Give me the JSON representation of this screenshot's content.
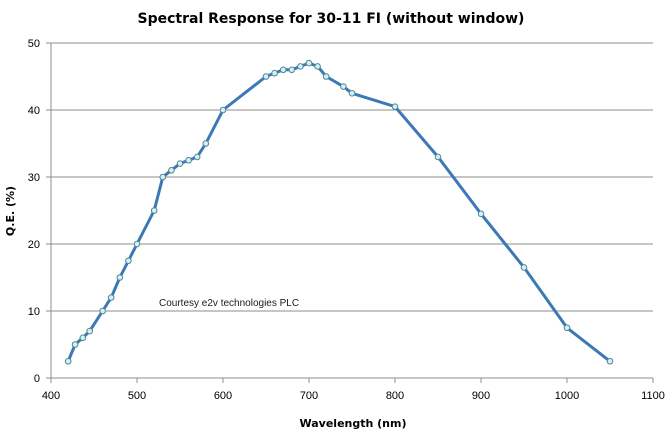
{
  "chart_data": {
    "type": "line",
    "title": "Spectral Response for 30-11 FI (without  window)",
    "xlabel": "Wavelength (nm)",
    "ylabel": "Q.E. (%)",
    "xlim": [
      400,
      1100
    ],
    "ylim": [
      0,
      50
    ],
    "xticks": [
      400,
      500,
      600,
      700,
      800,
      900,
      1000,
      1100
    ],
    "yticks": [
      0,
      10,
      20,
      30,
      40,
      50
    ],
    "grid": "horizontal",
    "legend": "none",
    "annotation": "Courtesy e2v technologies PLC",
    "colors": {
      "line": "#3d78b6",
      "marker_fill": "#d9eef4",
      "marker_stroke": "#4a8a95",
      "grid": "#8c8c8c"
    },
    "series": [
      {
        "x": [
          420,
          428,
          437,
          445,
          460,
          470,
          480,
          490,
          500,
          520,
          530,
          540,
          550,
          560,
          570,
          580,
          600,
          650,
          660,
          670,
          680,
          690,
          700,
          710,
          720,
          740,
          750,
          800,
          850,
          900,
          950,
          1000,
          1050
        ],
        "y": [
          2.5,
          5,
          6,
          7,
          10,
          12,
          15,
          17.5,
          20,
          25,
          30,
          31,
          32,
          32.5,
          33,
          35,
          40,
          45,
          45.5,
          46,
          46,
          46.5,
          47,
          46.5,
          45,
          43.5,
          42.5,
          40.5,
          33,
          24.5,
          16.5,
          7.5,
          2.5
        ]
      }
    ]
  }
}
